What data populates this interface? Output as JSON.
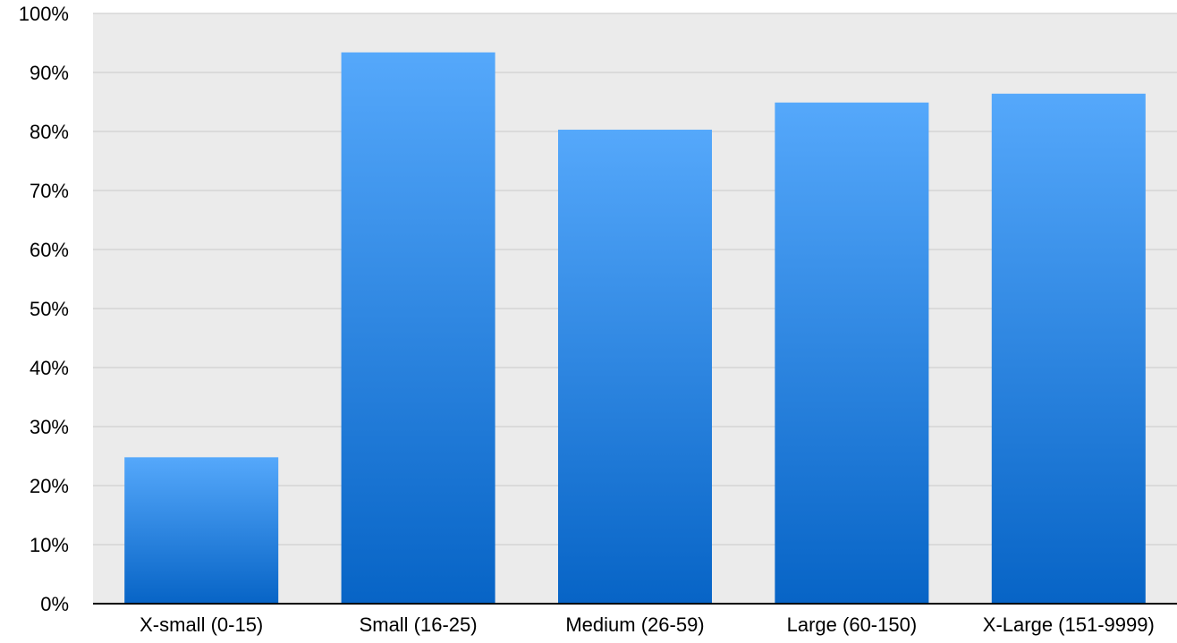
{
  "chart_data": {
    "type": "bar",
    "categories": [
      "X-small (0-15)",
      "Small (16-25)",
      "Medium (26-59)",
      "Large (60-150)",
      "X-Large (151-9999)"
    ],
    "values": [
      24.8,
      93.4,
      80.3,
      84.9,
      86.4
    ],
    "ylim": [
      0,
      100
    ],
    "y_ticks": [
      "0%",
      "10%",
      "20%",
      "30%",
      "40%",
      "50%",
      "60%",
      "70%",
      "80%",
      "90%",
      "100%"
    ],
    "title": "",
    "xlabel": "",
    "ylabel": "",
    "grid": true,
    "legend": "none"
  },
  "colors": {
    "plot_background": "#ebebeb",
    "gridline": "#c8c8c8",
    "bar_top": "#55a8fb",
    "bar_bottom": "#0764c6",
    "axis": "#000000"
  }
}
